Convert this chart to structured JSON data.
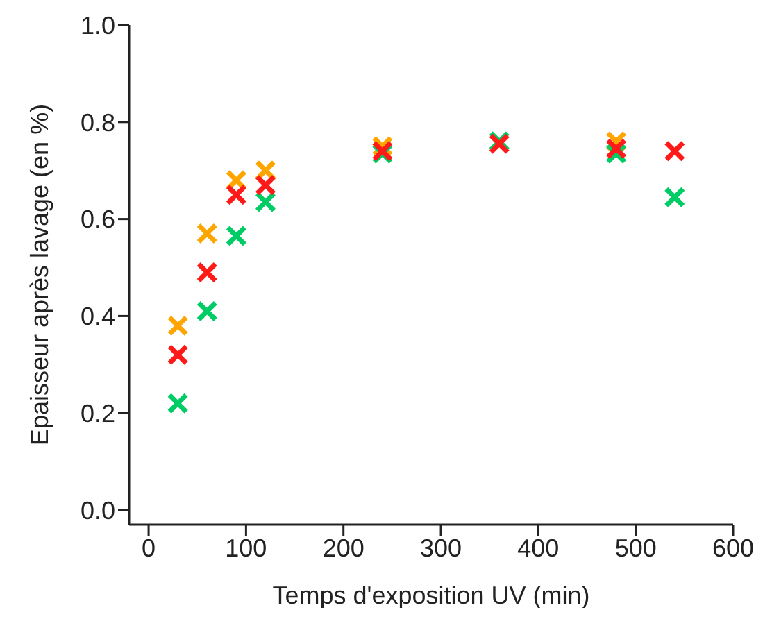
{
  "chart_data": {
    "type": "scatter",
    "xlabel": "Temps d'exposition UV (min)",
    "ylabel": "Epaisseur après lavage (en %)",
    "x": [
      30,
      60,
      90,
      120,
      240,
      360,
      480,
      540
    ],
    "series": [
      {
        "color": "#ffa500",
        "values": [
          0.38,
          0.57,
          0.68,
          0.7,
          0.75,
          null,
          0.76,
          null
        ]
      },
      {
        "color": "#00cc66",
        "values": [
          0.22,
          0.41,
          0.565,
          0.635,
          0.735,
          0.76,
          0.735,
          0.645
        ]
      },
      {
        "color": "#ff1a1a",
        "values": [
          0.32,
          0.49,
          0.65,
          0.67,
          0.74,
          0.755,
          0.745,
          0.74
        ]
      }
    ],
    "xlim": [
      -20,
      600
    ],
    "xticks": [
      0,
      100,
      200,
      300,
      400,
      500,
      600
    ],
    "ylim": [
      -0.03,
      1.0
    ],
    "yticks": [
      {
        "value": 0,
        "label": "0.0"
      },
      0.2,
      0.4,
      0.6,
      0.8,
      {
        "value": 1,
        "label": "1.0"
      }
    ],
    "marker": "cross",
    "grid": false,
    "legend": false
  }
}
